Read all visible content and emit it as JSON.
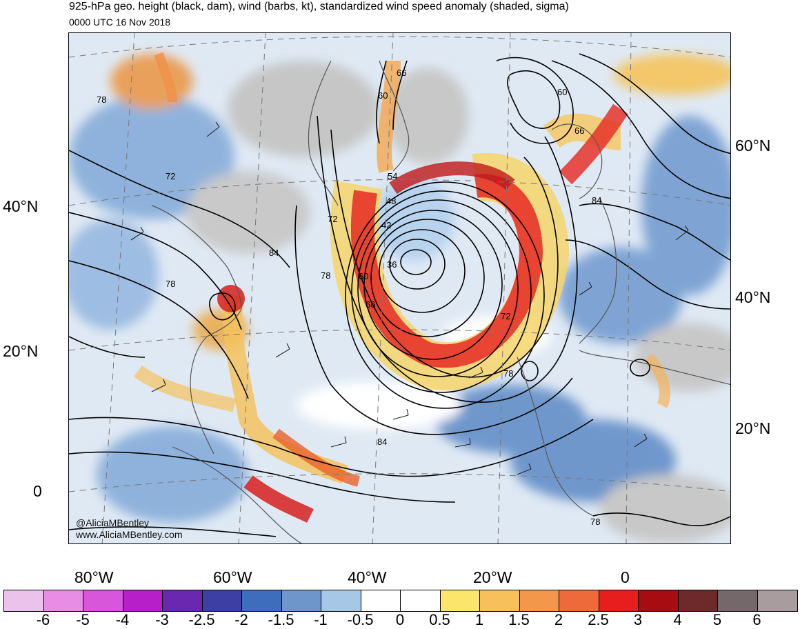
{
  "title": "925-hPa geo. height (black, dam), wind (barbs, kt), standardized wind speed anomaly (shaded, sigma)",
  "subtitle": "0000 UTC 16 Nov 2018",
  "credit": {
    "handle": "@AliciaMBentley",
    "website": "www.AliciaMBentley.com"
  },
  "axes": {
    "lat_left": [
      "40°N",
      "20°N",
      "0"
    ],
    "lat_right": [
      "60°N",
      "40°N",
      "20°N"
    ],
    "lon_bottom": [
      "80°W",
      "60°W",
      "40°W",
      "20°W",
      "0"
    ]
  },
  "contour_labels": [
    "66",
    "60",
    "60",
    "54",
    "48",
    "42",
    "36",
    "60",
    "66",
    "72",
    "78",
    "78",
    "72",
    "84",
    "72",
    "78",
    "78",
    "84",
    "66",
    "84",
    "78"
  ],
  "colorbar": {
    "labels": [
      "-6",
      "-5",
      "-4",
      "-3",
      "-2.5",
      "-2",
      "-1.5",
      "-1",
      "-0.5",
      "0",
      "0.5",
      "1",
      "1.5",
      "2",
      "2.5",
      "3",
      "4",
      "5",
      "6"
    ],
    "colors": [
      "#ebc2ea",
      "#e88de6",
      "#d756d9",
      "#b71fc8",
      "#6a28b0",
      "#3d3fa4",
      "#3f6dbd",
      "#6e96ca",
      "#a6c8e6",
      "#ffffff",
      "#ffffff",
      "#fbe56a",
      "#f7c05a",
      "#f3984a",
      "#ee6a3a",
      "#e61e1e",
      "#a60c12",
      "#6e2a2a",
      "#74686a",
      "#a89c9e"
    ]
  },
  "colors": {
    "land_gray": "#c4c4c4",
    "contour": "#000000",
    "coast": "#555555"
  }
}
